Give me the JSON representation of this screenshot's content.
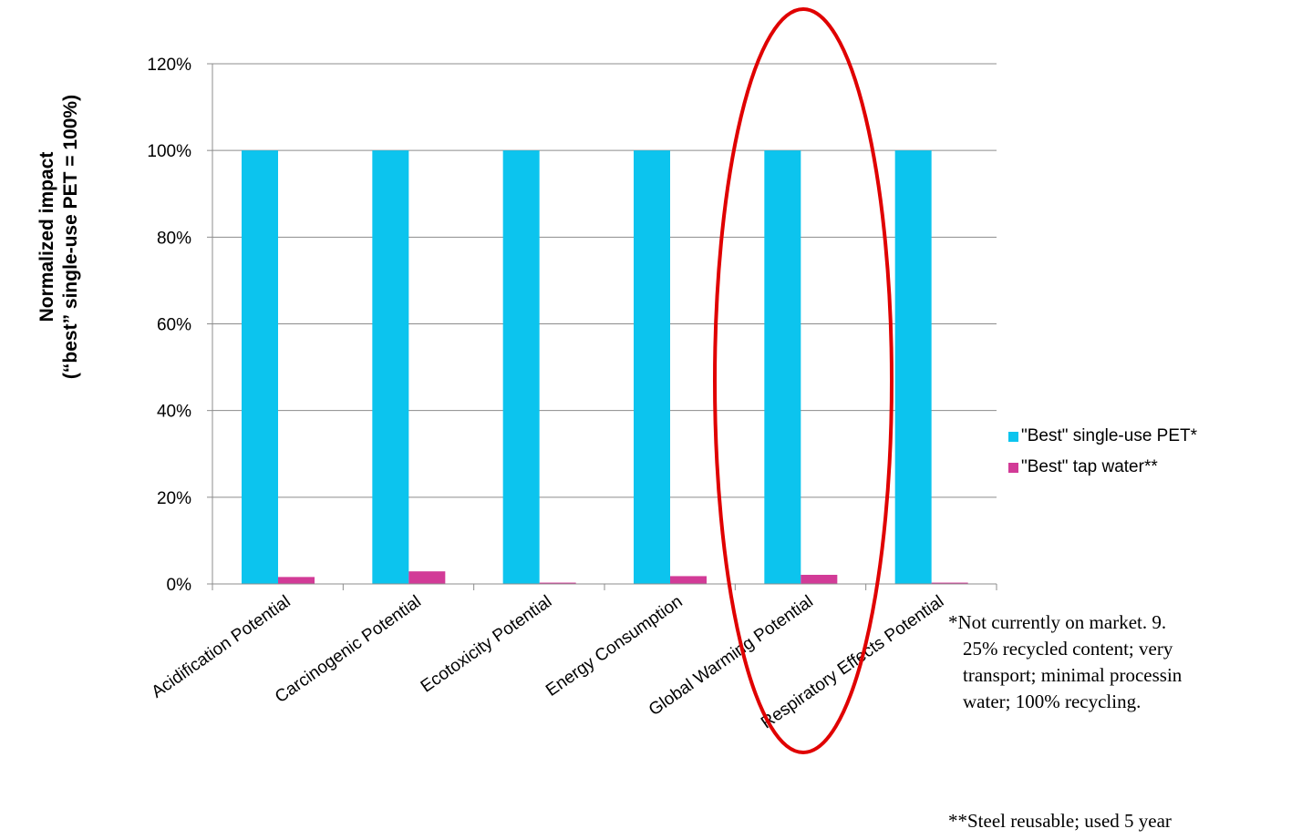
{
  "chart_data": {
    "type": "bar",
    "categories": [
      "Acidification Potential",
      "Carcinogenic Potential",
      "Ecotoxicity Potential",
      "Energy Consumption",
      "Global Warming Potential",
      "Respiratory Effects Potential"
    ],
    "series": [
      {
        "name": "\"Best\" single-use PET*",
        "values": [
          100,
          100,
          100,
          100,
          100,
          100
        ],
        "color": "#0cc4ee"
      },
      {
        "name": "\"Best\" tap water**",
        "values": [
          1.6,
          2.9,
          0.3,
          1.8,
          2.1,
          0.3
        ],
        "color": "#d23b97"
      }
    ],
    "ylabel_line1": "Normalized impact",
    "ylabel_line2": "(“best” single-use PET = 100%)",
    "ylim": [
      0,
      120
    ],
    "yticks": [
      0,
      20,
      40,
      60,
      80,
      100,
      120
    ],
    "ytick_labels": [
      "0%",
      "20%",
      "40%",
      "60%",
      "80%",
      "100%",
      "120%"
    ],
    "grid": true,
    "legend_position": "right",
    "highlight": {
      "category": "Global Warming Potential",
      "shape": "ellipse",
      "color": "#e00000"
    }
  },
  "footnotes": {
    "note1_line1": "*Not currently on market.  9.",
    "note1_line2": "25% recycled content; very",
    "note1_line3": "transport; minimal processin",
    "note1_line4": "water; 100% recycling.",
    "note2_line1": "**Steel reusable; used 5 year"
  }
}
